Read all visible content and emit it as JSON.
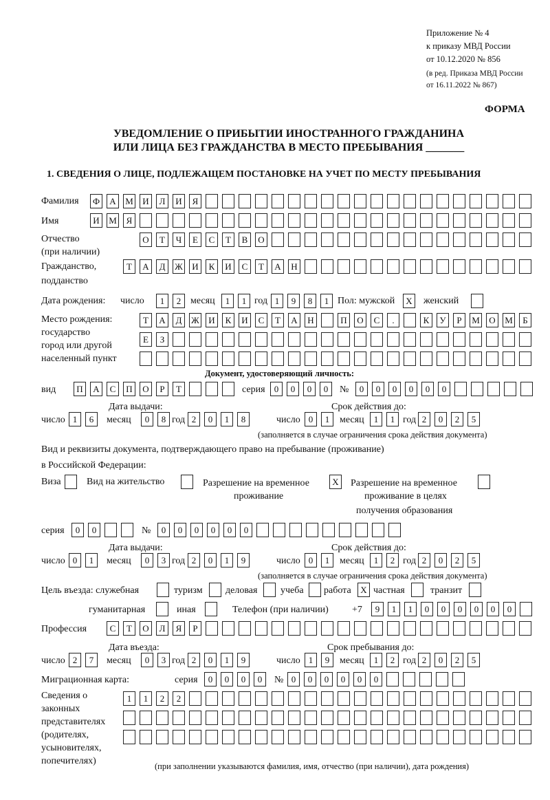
{
  "header": {
    "appendix_line1": "Приложение № 4",
    "appendix_line2": "к приказу МВД России",
    "appendix_line3": "от 10.12.2020 № 856",
    "amend_line1": "(в ред. Приказа МВД России",
    "amend_line2": "от 16.11.2022 № 867)",
    "form_label": "ФОРМА",
    "title_line1": "УВЕДОМЛЕНИЕ О ПРИБЫТИИ ИНОСТРАННОГО ГРАЖДАНИНА",
    "title_line2": "ИЛИ ЛИЦА БЕЗ ГРАЖДАНСТВА В МЕСТО ПРЕБЫВАНИЯ _______",
    "section1": "1. СВЕДЕНИЯ О ЛИЦЕ, ПОДЛЕЖАЩЕМ ПОСТАНОВКЕ НА УЧЕТ ПО МЕСТУ ПРЕБЫВАНИЯ"
  },
  "labels": {
    "surname": "Фамилия",
    "name": "Имя",
    "patronymic1": "Отчество",
    "patronymic2": "(при наличии)",
    "citizenship1": "Гражданство,",
    "citizenship2": "подданство",
    "birth_date": "Дата рождения:",
    "day": "число",
    "month": "месяц",
    "year": "год",
    "sex": "Пол: мужской",
    "female": "женский",
    "birthplace1": "Место рождения:",
    "birthplace2": "государство",
    "birthplace3": "город или другой",
    "birthplace4": "населенный пункт",
    "id_doc": "Документ, удостоверяющий личность:",
    "kind": "вид",
    "series": "серия",
    "number": "№",
    "issue_date": "Дата выдачи:",
    "valid_until": "Срок действия до:",
    "valid_note": "(заполняется в случае ограничения срока действия документа)",
    "right_doc1": "Вид и реквизиты документа, подтверждающего право на пребывание (проживание)",
    "right_doc2": "в Российской Федерации:",
    "visa": "Виза",
    "residence": "Вид на жительство",
    "trp1": "Разрешение на временное",
    "trp2": "проживание",
    "trp_edu1": "Разрешение на временное",
    "trp_edu2": "проживание в целях",
    "trp_edu3": "получения образования",
    "purpose": "Цель въезда: служебная",
    "tourism": "туризм",
    "business": "деловая",
    "study": "учеба",
    "work": "работа",
    "private": "частная",
    "transit": "транзит",
    "humanitarian": "гуманитарная",
    "other": "иная",
    "phone": "Телефон (при наличии)",
    "phone_prefix": "+7",
    "profession": "Профессия",
    "entry_date": "Дата въезда:",
    "stay_until": "Срок пребывания до:",
    "migration_card": "Миграционная карта:",
    "reps1": "Сведения о",
    "reps2": "законных",
    "reps3": "представителях",
    "reps4": "(родителях,",
    "reps5": "усыновителях,",
    "reps6": "попечителях)",
    "reps_note": "(при заполнении указываются фамилия, имя, отчество (при наличии), дата рождения)"
  },
  "fields": {
    "surname": "ФАМИЛИЯ",
    "name": "ИМЯ",
    "patronymic": "ОТЧЕСТВО",
    "citizenship": "ТАДЖИКИСТАН",
    "birth_day": "12",
    "birth_month": "11",
    "birth_year": "1981",
    "sex_male": "X",
    "sex_female": "",
    "birthplace_line1": "ТАДЖИКИСТАН ПОС. КУРМОМБ",
    "birthplace_line2": "ЕЗ",
    "birthplace_line3": "",
    "doc_kind": "ПАСПОРТ",
    "doc_series": "0000",
    "doc_number": "000000",
    "doc_issue_day": "16",
    "doc_issue_month": "08",
    "doc_issue_year": "2018",
    "doc_valid_day": "01",
    "doc_valid_month": "11",
    "doc_valid_year": "2025",
    "visa": "",
    "residence": "",
    "trp": "X",
    "trp_edu": "",
    "right_series": "00",
    "right_number": "000000",
    "right_issue_day": "01",
    "right_issue_month": "03",
    "right_issue_year": "2019",
    "right_valid_day": "01",
    "right_valid_month": "12",
    "right_valid_year": "2025",
    "p_official": "",
    "p_tourism": "",
    "p_business": "",
    "p_study": "",
    "p_work": "X",
    "p_private": "",
    "p_transit": "",
    "p_humanitarian": "",
    "p_other": "",
    "phone": "911000000",
    "profession": "СТОЛЯР",
    "entry_day": "27",
    "entry_month": "03",
    "entry_year": "2019",
    "stay_day": "19",
    "stay_month": "12",
    "stay_year": "2025",
    "mc_series": "0000",
    "mc_number": "000000",
    "reps_line1": "1122",
    "reps_line2": "",
    "reps_line3": ""
  }
}
